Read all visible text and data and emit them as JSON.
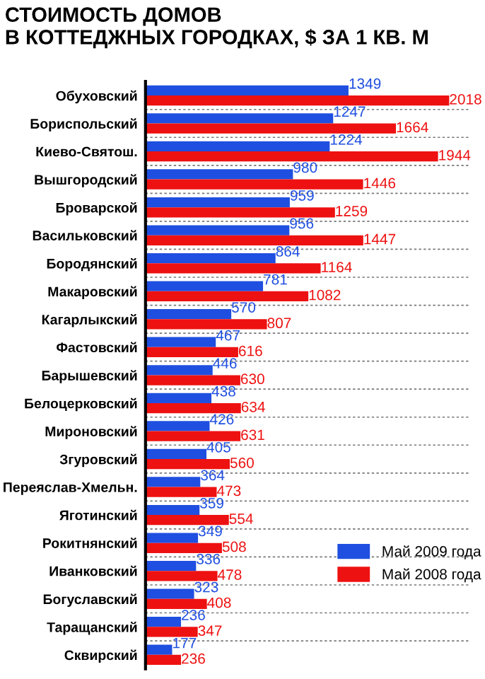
{
  "chart_data": {
    "type": "bar",
    "orientation": "horizontal",
    "title": "СТОИМОСТЬ ДОМОВ\nВ КОТТЕДЖНЫХ ГОРОДКАХ, $ ЗА 1 КВ. М",
    "categories": [
      "Обуховский",
      "Бориспольский",
      "Киево-Святош.",
      "Вышгородский",
      "Броварской",
      "Васильковский",
      "Бородянский",
      "Макаровский",
      "Кагарлыкский",
      "Фастовский",
      "Барышевский",
      "Белоцерковский",
      "Мироновский",
      "Згуровский",
      "Переяслав-Хмельн.",
      "Яготинский",
      "Рокитнянский",
      "Иванковский",
      "Богуславский",
      "Таращанский",
      "Сквирский"
    ],
    "series": [
      {
        "name": "Май 2009 года",
        "color": "#1f4fe0",
        "values": [
          1349,
          1247,
          1224,
          980,
          959,
          956,
          864,
          781,
          570,
          467,
          446,
          438,
          426,
          405,
          364,
          359,
          349,
          336,
          323,
          236,
          177
        ]
      },
      {
        "name": "Май 2008 года",
        "color": "#ee1111",
        "values": [
          2018,
          1664,
          1944,
          1446,
          1259,
          1447,
          1164,
          1082,
          807,
          616,
          630,
          634,
          631,
          560,
          473,
          554,
          508,
          478,
          408,
          347,
          236
        ]
      }
    ],
    "data_labels": true,
    "grid": "y",
    "legend": "bottom right"
  }
}
